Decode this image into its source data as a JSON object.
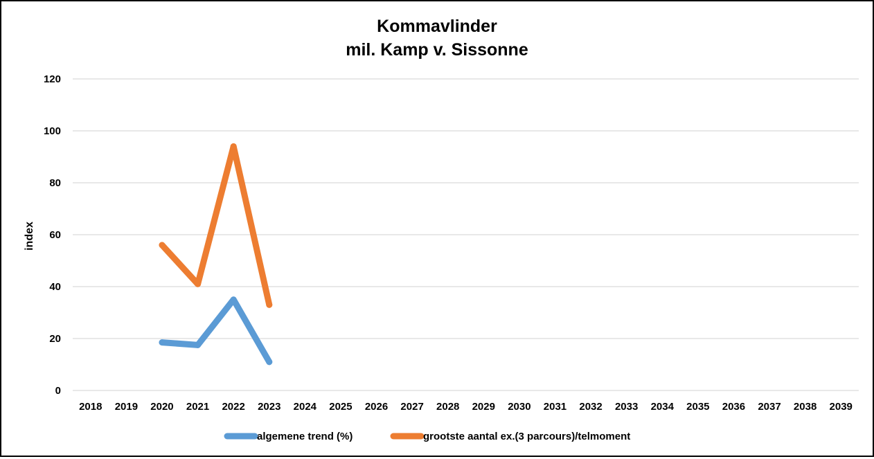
{
  "chart_data": {
    "type": "line",
    "title": [
      "Kommavlinder",
      "mil. Kamp v. Sissonne"
    ],
    "xlabel": "",
    "ylabel": "index",
    "ylim": [
      0,
      120
    ],
    "yticks": [
      0,
      20,
      40,
      60,
      80,
      100,
      120
    ],
    "grid": true,
    "legend_position": "bottom",
    "categories": [
      "2018",
      "2019",
      "2020",
      "2021",
      "2022",
      "2023",
      "2024",
      "2025",
      "2026",
      "2027",
      "2028",
      "2029",
      "2030",
      "2031",
      "2032",
      "2033",
      "2034",
      "2035",
      "2036",
      "2037",
      "2038",
      "2039"
    ],
    "series": [
      {
        "name": "algemene trend (%)",
        "color": "#5b9bd5",
        "values": [
          null,
          null,
          18.5,
          17.5,
          35,
          11,
          null,
          null,
          null,
          null,
          null,
          null,
          null,
          null,
          null,
          null,
          null,
          null,
          null,
          null,
          null,
          null
        ]
      },
      {
        "name": "grootste aantal ex.(3 parcours)/telmoment",
        "color": "#ed7d31",
        "values": [
          null,
          null,
          56,
          41,
          94,
          33,
          null,
          null,
          null,
          null,
          null,
          null,
          null,
          null,
          null,
          null,
          null,
          null,
          null,
          null,
          null,
          null
        ]
      }
    ]
  }
}
